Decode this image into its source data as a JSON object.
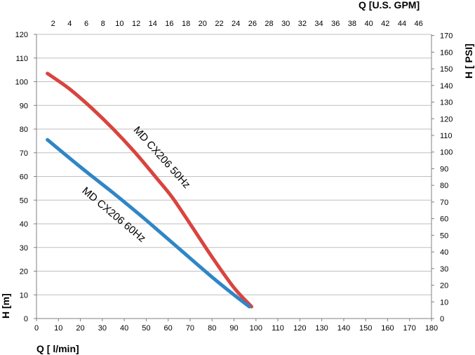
{
  "chart_data": {
    "type": "line",
    "x_axis": {
      "label": "Q [ l/min]",
      "range": [
        0,
        180
      ],
      "ticks": [
        0,
        10,
        20,
        30,
        40,
        50,
        60,
        70,
        80,
        90,
        100,
        110,
        120,
        130,
        140,
        150,
        160,
        170,
        180
      ]
    },
    "y_axis": {
      "label": "H [m]",
      "range": [
        0,
        120
      ],
      "ticks": [
        0,
        10,
        20,
        30,
        40,
        50,
        60,
        70,
        80,
        90,
        100,
        110,
        120
      ]
    },
    "x2_axis": {
      "label": "Q [U.S. GPM]",
      "ticks": [
        2,
        4,
        6,
        8,
        10,
        12,
        14,
        16,
        18,
        20,
        22,
        24,
        26,
        28,
        30,
        32,
        34,
        36,
        38,
        40,
        42,
        44,
        46
      ]
    },
    "y2_axis": {
      "label": "H [ PSI]",
      "ticks": [
        0,
        10,
        20,
        30,
        40,
        50,
        60,
        70,
        80,
        90,
        100,
        110,
        120,
        130,
        140,
        150,
        160,
        170
      ]
    },
    "grid": "horizontal",
    "series": [
      {
        "name": "MD CX206 50Hz",
        "color": "#d9443f",
        "x": [
          5,
          15,
          25,
          35,
          45,
          55,
          62,
          70,
          80,
          90,
          98
        ],
        "y": [
          103.5,
          97,
          89,
          80,
          70,
          59,
          51,
          40,
          26,
          13,
          5
        ]
      },
      {
        "name": "MD CX206 60Hz",
        "color": "#2f86c6",
        "x": [
          5,
          20,
          35,
          50,
          65,
          80,
          90,
          97
        ],
        "y": [
          75.5,
          64,
          53,
          41.5,
          29.5,
          17.5,
          10,
          5
        ]
      }
    ]
  }
}
